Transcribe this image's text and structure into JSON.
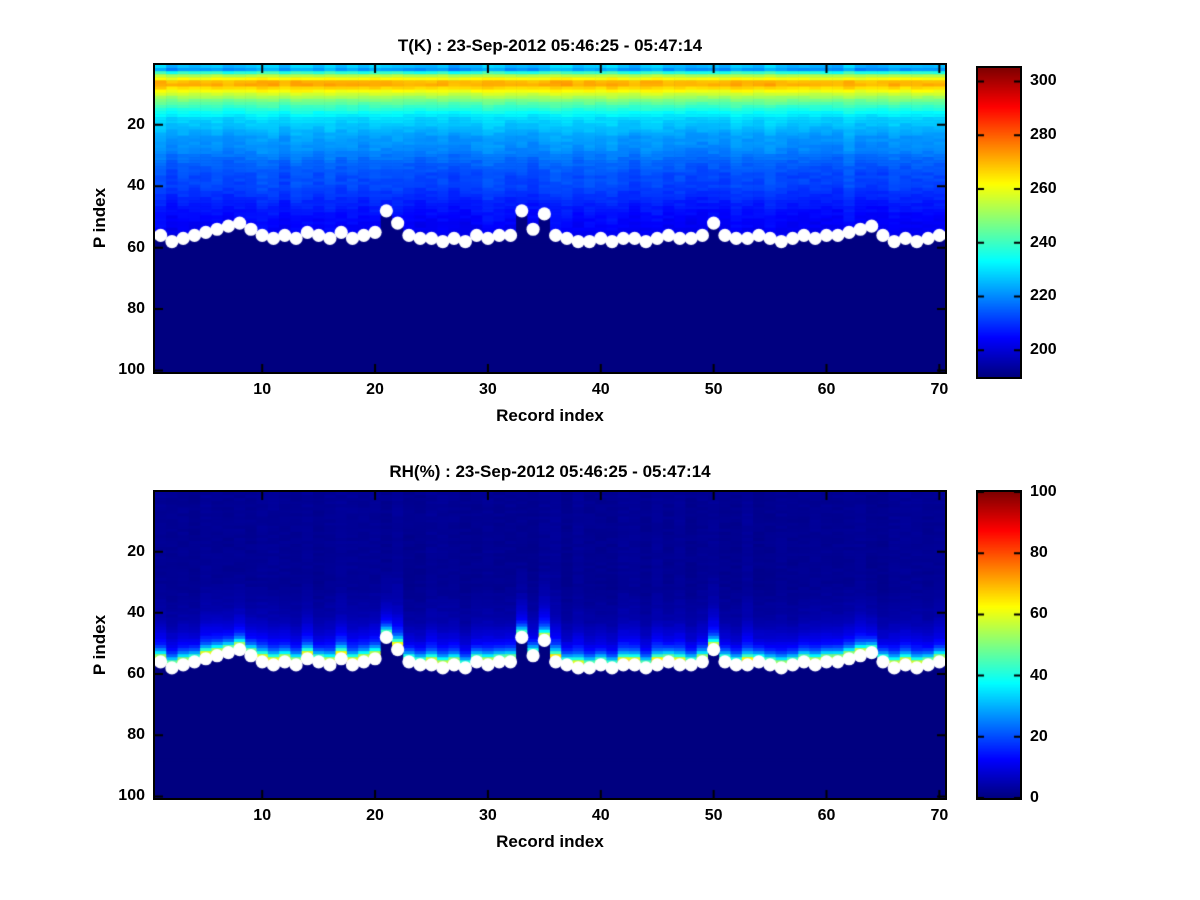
{
  "figure_background": "#ffffff",
  "colors": {
    "axis": "#000000",
    "text": "#000000",
    "marker": "#ffffff",
    "colormap_min_navy": "#000080",
    "colormap_max_dark_red": "#800000"
  },
  "chart_data": [
    {
      "type": "heatmap",
      "title": "T(K) : 23-Sep-2012 05:46:25 - 05:47:14",
      "xlabel": "Record index",
      "ylabel": "P index",
      "x_range": [
        1,
        70
      ],
      "y_range": [
        1,
        100
      ],
      "y_axis_reversed": true,
      "xticks": [
        10,
        20,
        30,
        40,
        50,
        60,
        70
      ],
      "yticks": [
        20,
        40,
        60,
        80,
        100
      ],
      "colormap": "jet",
      "clim": [
        190,
        305
      ],
      "colorbar_ticks": [
        200,
        220,
        240,
        260,
        280,
        300
      ],
      "grid": false,
      "vertical_profile": {
        "p_index": [
          1,
          2,
          3,
          4,
          5,
          6,
          7,
          8,
          9,
          10,
          12,
          14,
          16,
          18,
          20,
          24,
          28,
          32,
          36,
          40,
          45,
          50,
          55,
          60
        ],
        "T_K": [
          226,
          222,
          238,
          253,
          261,
          270,
          271,
          266,
          261,
          256,
          247,
          240,
          234,
          229,
          227,
          222,
          220,
          216,
          213,
          212,
          208,
          205,
          203,
          201
        ]
      },
      "below_surface_value": 190,
      "surface_line": {
        "marker": "white-circle",
        "p_by_record": [
          56,
          58,
          57,
          56,
          55,
          54,
          53,
          52,
          54,
          56,
          57,
          56,
          57,
          55,
          56,
          57,
          55,
          57,
          56,
          55,
          48,
          52,
          56,
          57,
          57,
          58,
          57,
          58,
          56,
          57,
          56,
          56,
          48,
          54,
          49,
          56,
          57,
          58,
          58,
          57,
          58,
          57,
          57,
          58,
          57,
          56,
          57,
          57,
          56,
          52,
          56,
          57,
          57,
          56,
          57,
          58,
          57,
          56,
          57,
          56,
          56,
          55,
          54,
          53,
          56,
          58,
          57,
          58,
          57,
          56
        ]
      }
    },
    {
      "type": "heatmap",
      "title": "RH(%) : 23-Sep-2012 05:46:25 - 05:47:14",
      "xlabel": "Record index",
      "ylabel": "P index",
      "x_range": [
        1,
        70
      ],
      "y_range": [
        1,
        100
      ],
      "y_axis_reversed": true,
      "xticks": [
        10,
        20,
        30,
        40,
        50,
        60,
        70
      ],
      "yticks": [
        20,
        40,
        60,
        80,
        100
      ],
      "colormap": "jet",
      "clim": [
        0,
        100
      ],
      "colorbar_ticks": [
        0,
        20,
        40,
        60,
        80,
        100
      ],
      "grid": false,
      "depth_profile_above_surface": {
        "depth": [
          1,
          2,
          3,
          4,
          5,
          6,
          8,
          10,
          12,
          15,
          20,
          25
        ],
        "RH_pct": [
          60,
          50,
          34,
          24,
          18,
          14,
          10,
          8,
          6,
          4,
          3,
          2
        ]
      },
      "below_surface_value": 0,
      "surface_line": {
        "marker": "white-circle",
        "p_by_record": [
          56,
          58,
          57,
          56,
          55,
          54,
          53,
          52,
          54,
          56,
          57,
          56,
          57,
          55,
          56,
          57,
          55,
          57,
          56,
          55,
          48,
          52,
          56,
          57,
          57,
          58,
          57,
          58,
          56,
          57,
          56,
          56,
          48,
          54,
          49,
          56,
          57,
          58,
          58,
          57,
          58,
          57,
          57,
          58,
          57,
          56,
          57,
          57,
          56,
          52,
          56,
          57,
          57,
          56,
          57,
          58,
          57,
          56,
          57,
          56,
          56,
          55,
          54,
          53,
          56,
          58,
          57,
          58,
          57,
          56
        ]
      }
    }
  ]
}
